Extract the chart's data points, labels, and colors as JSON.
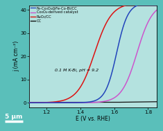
{
  "title": "",
  "xlabel": "E (V vs. RHE)",
  "ylabel": "j (mA cm⁻²)",
  "xlim": [
    1.1,
    1.85
  ],
  "ylim": [
    -2,
    42
  ],
  "annotation": "0.1 M K-Bi, pH = 9.2",
  "legend": [
    {
      "label": "Fe-Co₃O₄@Fe-Co-Bi/CC",
      "color": "#2244bb"
    },
    {
      "label": "Co₃O₄-derived catalyst",
      "color": "#cc55cc"
    },
    {
      "label": "RuO₂/CC",
      "color": "#dd1111"
    },
    {
      "label": "CC",
      "color": "#111111"
    }
  ],
  "bg_color": "#5abfba",
  "axes_bg_alpha": 0.55,
  "scalebar_label": "5 μm",
  "xticks": [
    1.2,
    1.4,
    1.6,
    1.8
  ],
  "yticks": [
    0,
    10,
    20,
    30,
    40
  ],
  "curve_blue": {
    "x0": 1.615,
    "k": 30,
    "scale": 43
  },
  "curve_magenta": {
    "x0": 1.735,
    "k": 22,
    "scale": 43
  },
  "curve_red": {
    "x0": 1.485,
    "k": 20,
    "scale": 43
  },
  "curve_black": {
    "flat": 0.2,
    "slope_start": 1.6,
    "slope": 1.0
  }
}
